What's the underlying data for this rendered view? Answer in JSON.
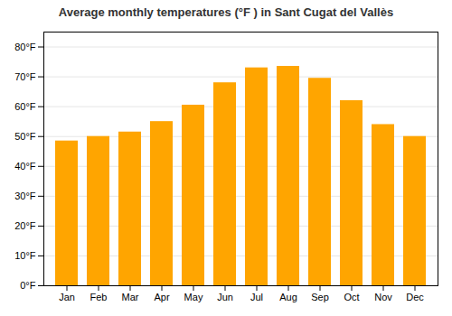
{
  "chart_data": {
    "type": "bar",
    "title": "Average monthly temperatures (°F ) in Sant Cugat del Vallès",
    "categories": [
      "Jan",
      "Feb",
      "Mar",
      "Apr",
      "May",
      "Jun",
      "Jul",
      "Aug",
      "Sep",
      "Oct",
      "Nov",
      "Dec"
    ],
    "values": [
      48.5,
      50.0,
      51.5,
      55.0,
      60.5,
      68.0,
      73.0,
      73.5,
      69.5,
      62.0,
      54.0,
      50.0
    ],
    "color": "#FFA500",
    "ylim": [
      0,
      85
    ],
    "yticks": [
      {
        "value": 0,
        "label": "0°F"
      },
      {
        "value": 10,
        "label": "10°F"
      },
      {
        "value": 20,
        "label": "20°F"
      },
      {
        "value": 30,
        "label": "30°F"
      },
      {
        "value": 40,
        "label": "40°F"
      },
      {
        "value": 50,
        "label": "50°F"
      },
      {
        "value": 60,
        "label": "60°F"
      },
      {
        "value": 70,
        "label": "70°F"
      },
      {
        "value": 80,
        "label": "80°F"
      }
    ],
    "grid": true
  }
}
